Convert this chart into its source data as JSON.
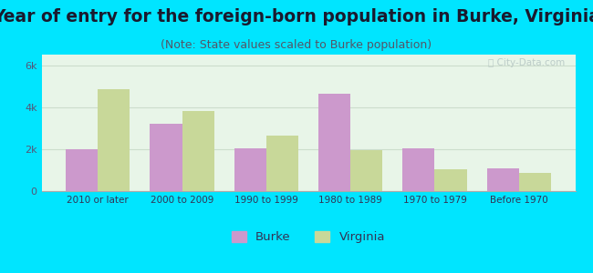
{
  "title": "Year of entry for the foreign-born population in Burke, Virginia",
  "subtitle": "(Note: State values scaled to Burke population)",
  "categories": [
    "2010 or later",
    "2000 to 2009",
    "1990 to 1999",
    "1980 to 1989",
    "1970 to 1979",
    "Before 1970"
  ],
  "burke_values": [
    2000,
    3200,
    2050,
    4650,
    2050,
    1100
  ],
  "virginia_values": [
    4850,
    3800,
    2650,
    1950,
    1050,
    850
  ],
  "burke_color": "#cc99cc",
  "virginia_color": "#c8d899",
  "background_outer": "#00e5ff",
  "background_inner_top": "#ffffff",
  "background_inner_bot": "#cceecc",
  "ylim": [
    0,
    6500
  ],
  "yticks": [
    0,
    2000,
    4000,
    6000
  ],
  "ytick_labels": [
    "0",
    "2k",
    "4k",
    "6k"
  ],
  "bar_width": 0.38,
  "title_fontsize": 13.5,
  "subtitle_fontsize": 9,
  "legend_labels": [
    "Burke",
    "Virginia"
  ],
  "watermark": "ⓘ City-Data.com"
}
